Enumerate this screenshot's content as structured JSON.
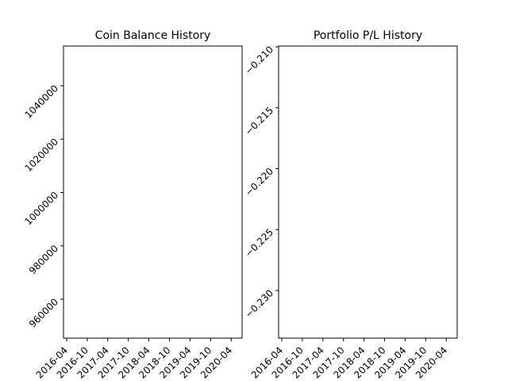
{
  "chart_data": [
    {
      "type": "line",
      "title": "Coin Balance History",
      "xlabel": "",
      "ylabel": "",
      "x_tick_labels": [
        "2016-04",
        "2016-10",
        "2017-04",
        "2017-10",
        "2018-04",
        "2018-10",
        "2019-04",
        "2019-10",
        "2020-04"
      ],
      "y_tick_labels": [
        "960000",
        "980000",
        "1000000",
        "1020000",
        "1040000"
      ],
      "ylim": [
        945000,
        1055000
      ],
      "xlim": [
        "2016-03-15",
        "2020-05-15"
      ],
      "series": [],
      "grid": false
    },
    {
      "type": "line",
      "title": "Portfolio P/L History",
      "xlabel": "",
      "ylabel": "",
      "x_tick_labels": [
        "2016-04",
        "2016-10",
        "2017-04",
        "2017-10",
        "2018-04",
        "2018-10",
        "2019-04",
        "2019-10",
        "2020-04"
      ],
      "y_tick_labels": [
        "−0.230",
        "−0.225",
        "−0.220",
        "−0.215",
        "−0.210"
      ],
      "ylim": [
        -0.2343,
        -0.2097
      ],
      "xlim": [
        "2016-03-15",
        "2020-05-15"
      ],
      "series": [],
      "grid": false
    }
  ]
}
